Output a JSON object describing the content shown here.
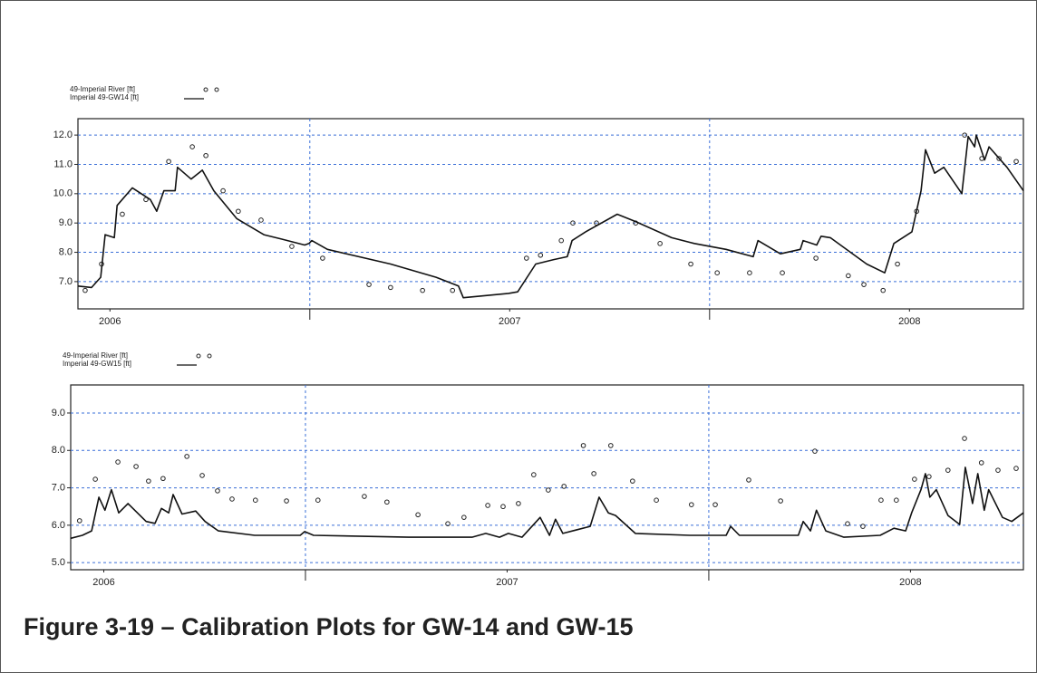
{
  "caption": "Figure 3-19 – Calibration Plots for GW-14 and GW-15",
  "chart_data": [
    {
      "type": "line",
      "xlim": [
        2006.42,
        2008.785
      ],
      "ylim": [
        6.07,
        12.56
      ],
      "xticks": [
        {
          "value": 2006.5,
          "label": "2006"
        },
        {
          "value": 2007.5,
          "label": "2007"
        },
        {
          "value": 2008.5,
          "label": "2008"
        }
      ],
      "xgrid": [
        2007,
        2008
      ],
      "yticks": [
        {
          "value": 7,
          "label": "7.0"
        },
        {
          "value": 8,
          "label": "8.0"
        },
        {
          "value": 9,
          "label": "9.0"
        },
        {
          "value": 10,
          "label": "10.0"
        },
        {
          "value": 11,
          "label": "11.0"
        },
        {
          "value": 12,
          "label": "12.0"
        }
      ],
      "grid": true,
      "legend": "top-left",
      "series": [
        {
          "name": "49-Imperial River  [ft]",
          "type": "scatter",
          "color": "#222222",
          "x": [
            2006.438,
            2006.479,
            2006.531,
            2006.59,
            2006.647,
            2006.706,
            2006.74,
            2006.783,
            2006.821,
            2006.878,
            2006.955,
            2007.032,
            2007.148,
            2007.202,
            2007.282,
            2007.357,
            2007.542,
            2007.577,
            2007.629,
            2007.658,
            2007.717,
            2007.815,
            2007.876,
            2007.953,
            2008.019,
            2008.1,
            2008.182,
            2008.266,
            2008.347,
            2008.386,
            2008.434,
            2008.47,
            2008.518,
            2008.638,
            2008.681,
            2008.724,
            2008.767
          ],
          "values": [
            6.7,
            7.6,
            9.3,
            9.8,
            11.1,
            11.6,
            11.3,
            10.1,
            9.4,
            9.1,
            8.2,
            7.8,
            6.9,
            6.8,
            6.7,
            6.7,
            7.8,
            7.9,
            8.4,
            9.0,
            9.0,
            9.0,
            8.3,
            7.6,
            7.3,
            7.3,
            7.3,
            7.8,
            7.2,
            6.9,
            6.7,
            7.6,
            9.4,
            12.0,
            11.2,
            11.2,
            11.1
          ]
        },
        {
          "name": "Imperial 49-GW14 [ft]",
          "type": "line",
          "color": "#111111",
          "x": [
            2006.42,
            2006.454,
            2006.477,
            2006.488,
            2006.511,
            2006.518,
            2006.556,
            2006.601,
            2006.617,
            2006.635,
            2006.663,
            2006.669,
            2006.703,
            2006.731,
            2006.76,
            2006.817,
            2006.885,
            2006.93,
            2006.987,
            2006.998,
            2007.005,
            2007.044,
            2007.202,
            2007.316,
            2007.372,
            2007.384,
            2007.497,
            2007.52,
            2007.565,
            2007.61,
            2007.644,
            2007.656,
            2007.69,
            2007.769,
            2007.815,
            2007.905,
            2007.962,
            2008.041,
            2008.109,
            2008.121,
            2008.177,
            2008.227,
            2008.234,
            2008.268,
            2008.279,
            2008.302,
            2008.393,
            2008.438,
            2008.461,
            2008.506,
            2008.529,
            2008.54,
            2008.563,
            2008.586,
            2008.631,
            2008.647,
            2008.663,
            2008.667,
            2008.688,
            2008.699,
            2008.744,
            2008.785
          ],
          "values": [
            6.85,
            6.8,
            7.15,
            8.6,
            8.5,
            9.6,
            10.2,
            9.8,
            9.4,
            10.1,
            10.1,
            10.9,
            10.5,
            10.8,
            10.1,
            9.15,
            8.6,
            8.45,
            8.25,
            8.3,
            8.4,
            8.1,
            7.6,
            7.15,
            6.85,
            6.45,
            6.6,
            6.65,
            7.6,
            7.75,
            7.85,
            8.4,
            8.7,
            9.3,
            9.05,
            8.5,
            8.3,
            8.1,
            7.85,
            8.4,
            7.95,
            8.1,
            8.4,
            8.25,
            8.55,
            8.5,
            7.6,
            7.3,
            8.3,
            8.7,
            10.1,
            11.5,
            10.7,
            10.9,
            10.0,
            11.95,
            11.6,
            12.0,
            11.15,
            11.6,
            10.9,
            10.1
          ]
        }
      ]
    },
    {
      "type": "line",
      "xlim": [
        2006.418,
        2008.78
      ],
      "ylim": [
        4.81,
        9.75
      ],
      "xticks": [
        {
          "value": 2006.5,
          "label": "2006"
        },
        {
          "value": 2007.5,
          "label": "2007"
        },
        {
          "value": 2008.5,
          "label": "2008"
        }
      ],
      "xgrid": [
        2007,
        2008
      ],
      "yticks": [
        {
          "value": 5,
          "label": "5.0"
        },
        {
          "value": 6,
          "label": "6.0"
        },
        {
          "value": 7,
          "label": "7.0"
        },
        {
          "value": 8,
          "label": "8.0"
        },
        {
          "value": 9,
          "label": "9.0"
        }
      ],
      "grid": true,
      "legend": "top-left",
      "series": [
        {
          "name": "49-Imperial River  [ft]",
          "type": "scatter",
          "color": "#222222",
          "x": [
            2006.44,
            2006.479,
            2006.535,
            2006.58,
            2006.611,
            2006.647,
            2006.706,
            2006.744,
            2006.782,
            2006.818,
            2006.876,
            2006.953,
            2007.031,
            2007.146,
            2007.202,
            2007.279,
            2007.353,
            2007.393,
            2007.452,
            2007.49,
            2007.528,
            2007.566,
            2007.602,
            2007.641,
            2007.689,
            2007.715,
            2007.757,
            2007.811,
            2007.87,
            2007.957,
            2008.016,
            2008.099,
            2008.178,
            2008.263,
            2008.344,
            2008.382,
            2008.427,
            2008.465,
            2008.51,
            2008.546,
            2008.593,
            2008.634,
            2008.676,
            2008.717,
            2008.762
          ],
          "values": [
            6.12,
            7.23,
            7.69,
            7.57,
            7.18,
            7.25,
            7.84,
            7.33,
            6.92,
            6.7,
            6.67,
            6.65,
            6.67,
            6.77,
            6.62,
            6.28,
            6.04,
            6.21,
            6.53,
            6.5,
            6.58,
            7.35,
            6.94,
            7.04,
            8.13,
            7.38,
            8.13,
            7.18,
            6.67,
            6.55,
            6.55,
            7.21,
            6.65,
            7.98,
            6.04,
            5.97,
            6.67,
            6.67,
            7.23,
            7.3,
            7.47,
            8.32,
            7.67,
            7.47,
            7.52
          ]
        },
        {
          "name": "Imperial 49-GW15 [ft]",
          "type": "line",
          "color": "#111111",
          "x": [
            2006.418,
            2006.447,
            2006.47,
            2006.488,
            2006.503,
            2006.519,
            2006.537,
            2006.56,
            2006.605,
            2006.627,
            2006.643,
            2006.661,
            2006.672,
            2006.694,
            2006.728,
            2006.751,
            2006.784,
            2006.874,
            2006.987,
            2006.998,
            2007.02,
            2007.256,
            2007.413,
            2007.447,
            2007.481,
            2007.503,
            2007.537,
            2007.582,
            2007.605,
            2007.62,
            2007.638,
            2007.706,
            2007.728,
            2007.751,
            2007.769,
            2007.818,
            2007.953,
            2008.043,
            2008.054,
            2008.076,
            2008.222,
            2008.234,
            2008.252,
            2008.267,
            2008.29,
            2008.335,
            2008.425,
            2008.459,
            2008.488,
            2008.503,
            2008.526,
            2008.537,
            2008.548,
            2008.564,
            2008.593,
            2008.622,
            2008.636,
            2008.654,
            2008.667,
            2008.683,
            2008.694,
            2008.728,
            2008.751,
            2008.78
          ],
          "values": [
            5.65,
            5.73,
            5.85,
            6.75,
            6.4,
            6.95,
            6.33,
            6.58,
            6.1,
            6.05,
            6.45,
            6.33,
            6.82,
            6.3,
            6.38,
            6.1,
            5.85,
            5.73,
            5.73,
            5.83,
            5.73,
            5.68,
            5.68,
            5.78,
            5.68,
            5.78,
            5.68,
            6.21,
            5.73,
            6.16,
            5.78,
            5.97,
            6.75,
            6.33,
            6.26,
            5.78,
            5.73,
            5.73,
            5.97,
            5.73,
            5.73,
            6.1,
            5.85,
            6.4,
            5.85,
            5.68,
            5.73,
            5.92,
            5.85,
            6.33,
            6.95,
            7.38,
            6.75,
            6.95,
            6.26,
            6.02,
            7.55,
            6.58,
            7.38,
            6.4,
            6.95,
            6.21,
            6.1,
            6.33
          ]
        }
      ]
    }
  ]
}
